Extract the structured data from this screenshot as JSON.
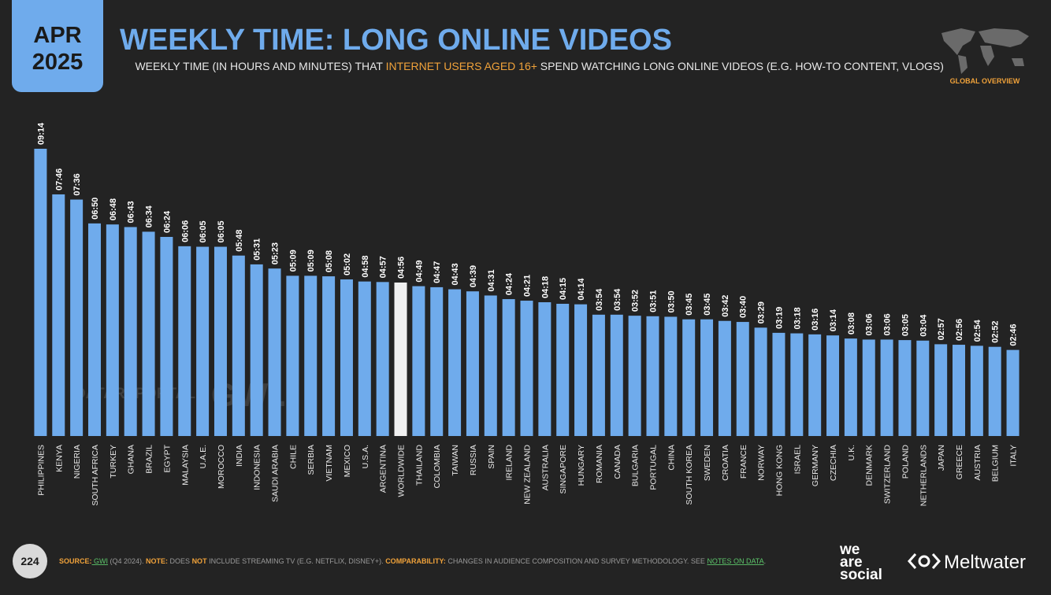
{
  "header": {
    "month": "APR",
    "year": "2025",
    "title": "WEEKLY TIME: LONG ONLINE VIDEOS",
    "subtitle_parts": [
      "WEEKLY TIME (IN HOURS AND MINUTES) THAT ",
      "INTERNET USERS AGED 16+",
      " SPEND WATCHING LONG ONLINE VIDEOS (E.G. HOW-TO CONTENT, VLOGS)"
    ],
    "section": "GLOBAL OVERVIEW"
  },
  "watermarks": [
    "DATAREPORTAL",
    "GWI."
  ],
  "chart_data": {
    "type": "bar",
    "color": "#6fabec",
    "highlight": "WORLDWIDE",
    "highlight_color": "#f0f0f0",
    "categories": [
      "PHILIPPINES",
      "KENYA",
      "NIGERIA",
      "SOUTH AFRICA",
      "TURKEY",
      "GHANA",
      "BRAZIL",
      "EGYPT",
      "MALAYSIA",
      "U.A.E.",
      "MOROCCO",
      "INDIA",
      "INDONESIA",
      "SAUDI ARABIA",
      "CHILE",
      "SERBIA",
      "VIETNAM",
      "MEXICO",
      "U.S.A.",
      "ARGENTINA",
      "WORLDWIDE",
      "THAILAND",
      "COLOMBIA",
      "TAIWAN",
      "RUSSIA",
      "SPAIN",
      "IRELAND",
      "NEW ZEALAND",
      "AUSTRALIA",
      "SINGAPORE",
      "HUNGARY",
      "ROMANIA",
      "CANADA",
      "BULGARIA",
      "PORTUGAL",
      "CHINA",
      "SOUTH KOREA",
      "SWEDEN",
      "CROATIA",
      "FRANCE",
      "NORWAY",
      "HONG KONG",
      "ISRAEL",
      "GERMANY",
      "CZECHIA",
      "U.K.",
      "DENMARK",
      "SWITZERLAND",
      "POLAND",
      "NETHERLANDS",
      "JAPAN",
      "GREECE",
      "AUSTRIA",
      "BELGIUM",
      "ITALY"
    ],
    "values": [
      554,
      466,
      456,
      410,
      408,
      403,
      394,
      384,
      366,
      365,
      365,
      348,
      331,
      323,
      309,
      309,
      308,
      302,
      298,
      297,
      296,
      289,
      287,
      283,
      279,
      271,
      264,
      261,
      258,
      255,
      254,
      234,
      234,
      232,
      231,
      230,
      225,
      225,
      222,
      220,
      209,
      199,
      198,
      196,
      194,
      188,
      186,
      186,
      185,
      184,
      177,
      176,
      174,
      172,
      166
    ],
    "value_labels": [
      "09:14",
      "07:46",
      "07:36",
      "06:50",
      "06:48",
      "06:43",
      "06:34",
      "06:24",
      "06:06",
      "06:05",
      "06:05",
      "05:48",
      "05:31",
      "05:23",
      "05:09",
      "05:09",
      "05:08",
      "05:02",
      "04:58",
      "04:57",
      "04:56",
      "04:49",
      "04:47",
      "04:43",
      "04:39",
      "04:31",
      "04:24",
      "04:21",
      "04:18",
      "04:15",
      "04:14",
      "03:54",
      "03:54",
      "03:52",
      "03:51",
      "03:50",
      "03:45",
      "03:45",
      "03:42",
      "03:40",
      "03:29",
      "03:19",
      "03:18",
      "03:16",
      "03:14",
      "03:08",
      "03:06",
      "03:06",
      "03:05",
      "03:04",
      "02:57",
      "02:56",
      "02:54",
      "02:52",
      "02:46"
    ]
  },
  "footer": {
    "page": "224",
    "source_parts": [
      {
        "text": "SOURCE:",
        "style": "key"
      },
      {
        "text": " GWI",
        "style": "link"
      },
      {
        "text": " (Q4 2024). ",
        "style": "plain"
      },
      {
        "text": "NOTE:",
        "style": "key"
      },
      {
        "text": " DOES ",
        "style": "plain"
      },
      {
        "text": "NOT",
        "style": "key"
      },
      {
        "text": " INCLUDE STREAMING TV (E.G. NETFLIX, DISNEY+). ",
        "style": "plain"
      },
      {
        "text": "COMPARABILITY:",
        "style": "key"
      },
      {
        "text": " CHANGES IN AUDIENCE COMPOSITION AND SURVEY METHODOLOGY. SEE ",
        "style": "plain"
      },
      {
        "text": "NOTES ON DATA",
        "style": "link"
      },
      {
        "text": ".",
        "style": "plain"
      }
    ],
    "logo_left": [
      "we",
      "are",
      "social"
    ],
    "logo_right": "Meltwater"
  }
}
